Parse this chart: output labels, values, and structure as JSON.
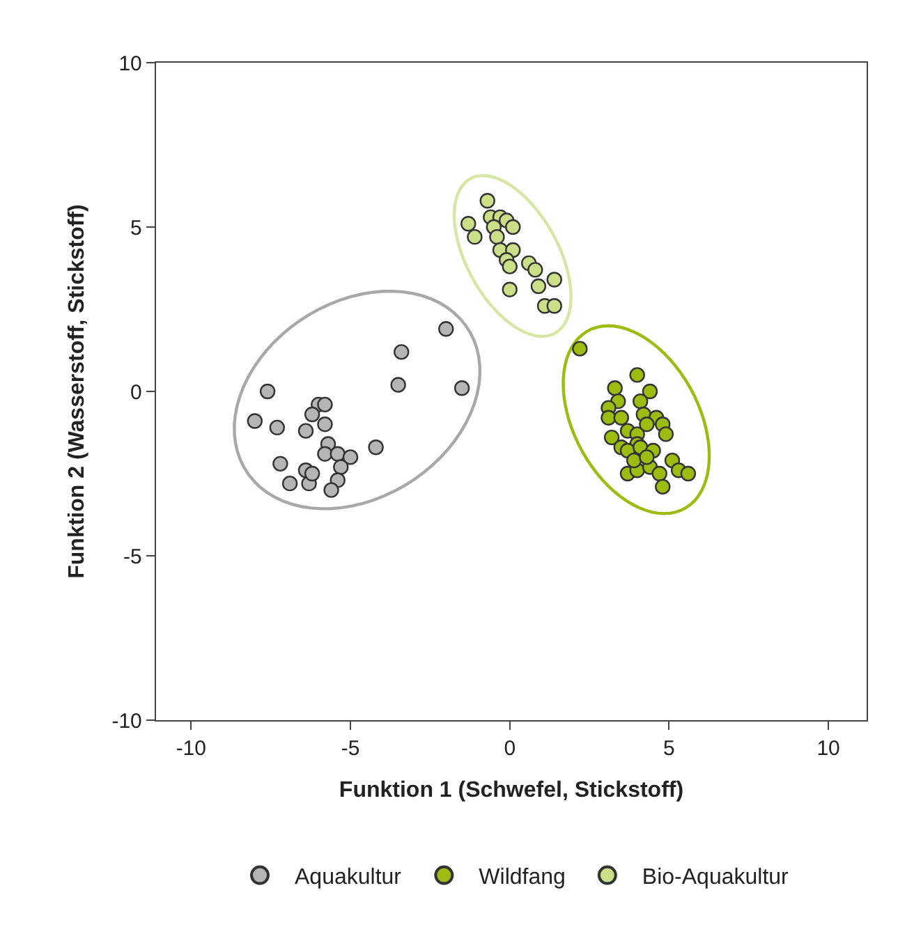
{
  "chart_data": {
    "type": "scatter",
    "xlabel": "Funktion 1 (Schwefel, Stickstoff)",
    "ylabel": "Funktion 2 (Wasserstoff, Stickstoff)",
    "xlim": [
      -11.1,
      11.2
    ],
    "ylim": [
      -10,
      10
    ],
    "xticks": [
      -10,
      -5,
      0,
      5,
      10
    ],
    "yticks": [
      -10,
      -5,
      0,
      5,
      10
    ],
    "grid": false,
    "legend": "bottom",
    "marker": "circle",
    "series": [
      {
        "name": "Aquakultur",
        "color": "#b5b5b5",
        "x": [
          -2.0,
          -3.4,
          -3.5,
          -1.5,
          -7.6,
          -8.0,
          -7.3,
          -6.0,
          -5.8,
          -6.2,
          -6.4,
          -5.8,
          -5.7,
          -5.8,
          -5.4,
          -5.0,
          -4.2,
          -5.3,
          -7.2,
          -6.4,
          -6.3,
          -6.9,
          -5.4,
          -5.6,
          -6.2
        ],
        "values": [
          1.9,
          1.2,
          0.2,
          0.1,
          0.0,
          -0.9,
          -1.1,
          -0.4,
          -0.4,
          -0.7,
          -1.2,
          -1.0,
          -1.6,
          -1.9,
          -1.9,
          -2.0,
          -1.7,
          -2.3,
          -2.2,
          -2.4,
          -2.8,
          -2.8,
          -2.7,
          -3.0,
          -2.5
        ]
      },
      {
        "name": "Wildfang",
        "color": "#9cbc12",
        "x": [
          2.2,
          4.0,
          3.3,
          4.4,
          3.4,
          3.1,
          4.1,
          3.1,
          3.5,
          4.2,
          4.6,
          4.8,
          4.9,
          3.2,
          3.7,
          4.0,
          4.3,
          4.0,
          3.5,
          3.7,
          4.1,
          4.5,
          5.1,
          5.3,
          5.6,
          3.7,
          4.0,
          4.4,
          4.7,
          4.8,
          3.9,
          4.3
        ],
        "values": [
          1.3,
          0.5,
          0.1,
          0.0,
          -0.3,
          -0.5,
          -0.3,
          -0.8,
          -0.8,
          -0.7,
          -0.8,
          -1.0,
          -1.3,
          -1.4,
          -1.2,
          -1.3,
          -1.0,
          -1.6,
          -1.7,
          -1.8,
          -1.7,
          -1.8,
          -2.1,
          -2.4,
          -2.5,
          -2.5,
          -2.4,
          -2.3,
          -2.5,
          -2.9,
          -2.1,
          -2.0
        ]
      },
      {
        "name": "Bio-Aquakultur",
        "color": "#cbde88",
        "x": [
          -0.7,
          -1.3,
          -1.1,
          -0.6,
          -0.3,
          -0.5,
          -0.1,
          0.1,
          -0.4,
          -0.3,
          0.1,
          -0.1,
          0.0,
          0.6,
          0.8,
          1.4,
          0.9,
          0.0,
          1.1,
          1.4
        ],
        "values": [
          5.8,
          5.1,
          4.7,
          5.3,
          5.3,
          5.0,
          5.2,
          5.0,
          4.7,
          4.3,
          4.3,
          4.0,
          3.8,
          3.9,
          3.7,
          3.4,
          3.2,
          3.1,
          2.6,
          2.6
        ]
      }
    ]
  }
}
